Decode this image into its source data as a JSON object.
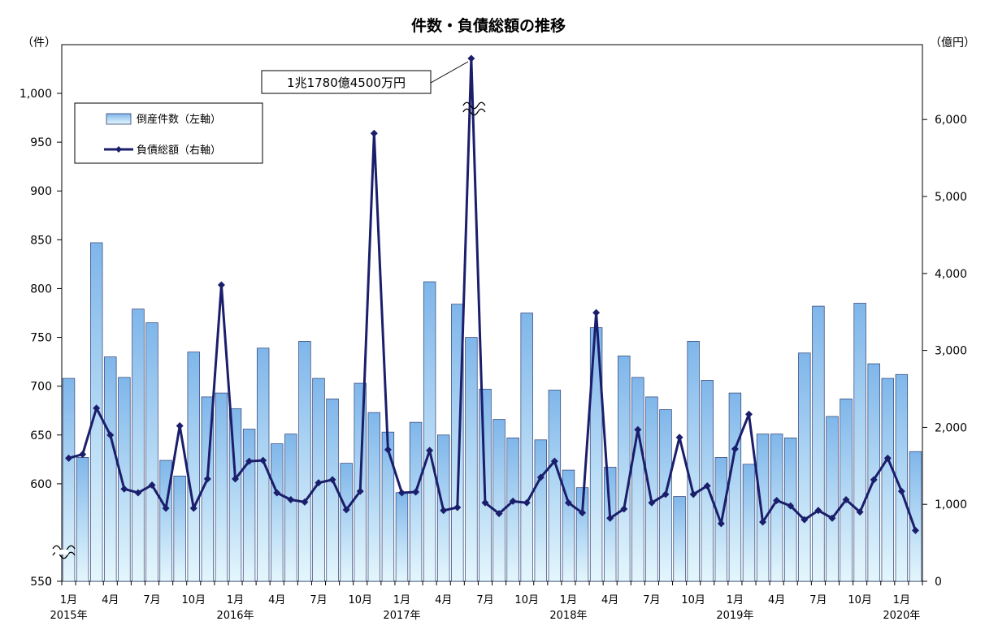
{
  "chart_data": {
    "type": "bar+line",
    "title": "件数・負債総額の推移",
    "left_axis": {
      "unit": "（件）",
      "ticks": [
        "0",
        "550",
        "600",
        "650",
        "700",
        "750",
        "800",
        "850",
        "900",
        "950",
        "1,000"
      ],
      "display_range": [
        550,
        1000
      ],
      "broken_below": 550
    },
    "right_axis": {
      "unit": "（億円）",
      "ticks": [
        "0",
        "1,000",
        "2,000",
        "3,000",
        "4,000",
        "5,000",
        "6,000"
      ],
      "range": [
        0,
        7000
      ]
    },
    "x_month_labels": [
      "1月",
      "4月",
      "7月",
      "10月",
      "1月",
      "4月",
      "7月",
      "10月",
      "1月",
      "4月",
      "7月",
      "10月",
      "1月",
      "4月",
      "7月",
      "10月",
      "1月",
      "4月",
      "7月",
      "10月",
      "1月"
    ],
    "x_year_labels": [
      "2015年",
      "2016年",
      "2017年",
      "2018年",
      "2019年",
      "2020年"
    ],
    "legend": {
      "bar": "倒産件数（左軸）",
      "line": "負債総額（右軸）"
    },
    "annotation": "1兆1780億4500万円",
    "series": [
      {
        "name": "倒産件数（左軸）",
        "values": [
          708,
          627,
          847,
          730,
          709,
          779,
          765,
          624,
          608,
          735,
          689,
          693,
          677,
          656,
          739,
          641,
          651,
          746,
          708,
          687,
          621,
          703,
          673,
          653,
          591,
          663,
          807,
          650,
          784,
          750,
          697,
          666,
          647,
          775,
          645,
          696,
          614,
          596,
          760,
          617,
          731,
          709,
          689,
          676,
          587,
          746,
          706,
          627,
          693,
          620,
          651,
          651,
          647,
          734,
          782,
          669,
          687,
          785,
          723,
          708,
          712,
          633
        ]
      },
      {
        "name": "負債総額（右軸）",
        "values": [
          1600,
          1650,
          2250,
          1900,
          1200,
          1150,
          1250,
          950,
          2020,
          950,
          1330,
          3850,
          1330,
          1560,
          1570,
          1150,
          1060,
          1030,
          1280,
          1320,
          930,
          1170,
          5820,
          1710,
          1150,
          1160,
          1700,
          920,
          960,
          11780,
          1020,
          880,
          1040,
          1020,
          1350,
          1560,
          1020,
          890,
          3490,
          820,
          940,
          1970,
          1020,
          1130,
          1870,
          1130,
          1240,
          750,
          1720,
          2170,
          770,
          1050,
          980,
          800,
          920,
          820,
          1060,
          900,
          1320,
          1600,
          1170,
          660
        ]
      }
    ]
  }
}
